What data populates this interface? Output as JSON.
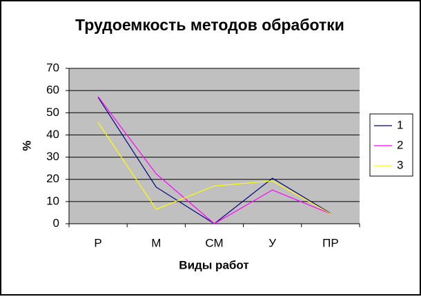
{
  "chart_data": {
    "type": "line",
    "title": "Трудоемкость методов обработки",
    "xlabel": "Виды работ",
    "ylabel": "%",
    "categories": [
      "Р",
      "М",
      "СМ",
      "У",
      "ПР"
    ],
    "series": [
      {
        "name": "1",
        "color": "#000080",
        "values": [
          57,
          16.5,
          0,
          20.5,
          4.7
        ]
      },
      {
        "name": "2",
        "color": "#ff00ff",
        "values": [
          57.3,
          22.5,
          0,
          15.2,
          4.5
        ]
      },
      {
        "name": "3",
        "color": "#ffff00",
        "values": [
          45.7,
          6.5,
          17,
          19.3,
          4.5
        ]
      }
    ],
    "ylim": [
      0,
      70
    ],
    "yticks": [
      0,
      10,
      20,
      30,
      40,
      50,
      60,
      70
    ],
    "grid": true,
    "legend": "right"
  }
}
